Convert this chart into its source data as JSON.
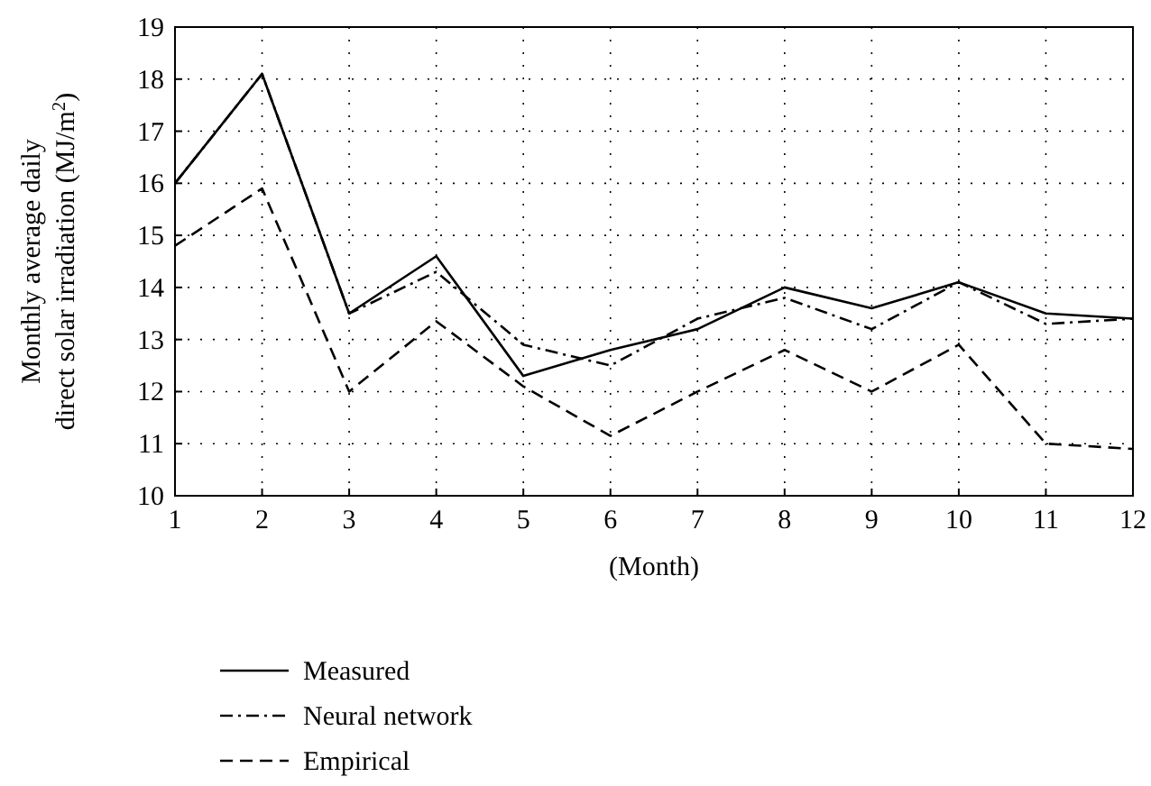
{
  "chart_data": {
    "type": "line",
    "xlabel": "(Month)",
    "ylabel": "Monthly average daily\ndirect solar irradiation (MJ/m$^{2}$)",
    "x": [
      1,
      2,
      3,
      4,
      5,
      6,
      7,
      8,
      9,
      10,
      11,
      12
    ],
    "series": [
      {
        "name": "Measured",
        "color": "#000000",
        "line_style": "solid",
        "values": [
          16.0,
          18.1,
          13.5,
          14.6,
          12.3,
          12.8,
          13.2,
          14.0,
          13.6,
          14.1,
          13.5,
          13.4
        ]
      },
      {
        "name": "Neural network",
        "color": "#000000",
        "line_style": "dashdot",
        "values": [
          16.0,
          18.1,
          13.5,
          14.3,
          12.9,
          12.5,
          13.4,
          13.8,
          13.2,
          14.1,
          13.3,
          13.4
        ]
      },
      {
        "name": "Empirical",
        "color": "#000000",
        "line_style": "dashed",
        "values": [
          14.8,
          15.9,
          12.0,
          13.35,
          12.1,
          11.15,
          12.0,
          12.8,
          12.0,
          12.9,
          11.0,
          10.9
        ]
      }
    ],
    "xlim": [
      1,
      12
    ],
    "xticks": [
      1,
      2,
      3,
      4,
      5,
      6,
      7,
      8,
      9,
      10,
      11,
      12
    ],
    "ylim": [
      10,
      19
    ],
    "yticks": [
      10,
      11,
      12,
      13,
      14,
      15,
      16,
      17,
      18,
      19
    ],
    "grid": true,
    "legend": "bottom left",
    "marker": "none"
  }
}
